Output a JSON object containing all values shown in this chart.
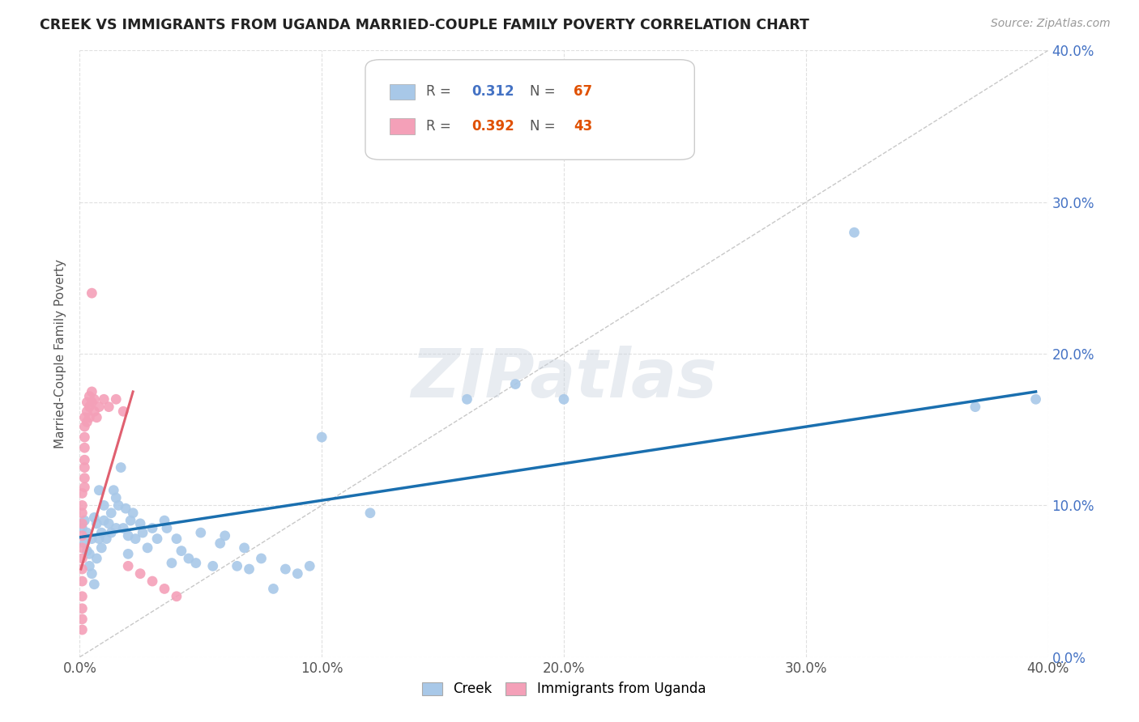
{
  "title": "CREEK VS IMMIGRANTS FROM UGANDA MARRIED-COUPLE FAMILY POVERTY CORRELATION CHART",
  "source": "Source: ZipAtlas.com",
  "ylabel": "Married-Couple Family Poverty",
  "xlim": [
    0.0,
    0.4
  ],
  "ylim": [
    0.0,
    0.4
  ],
  "xtick_vals": [
    0.0,
    0.1,
    0.2,
    0.3,
    0.4
  ],
  "xtick_labels": [
    "0.0%",
    "10.0%",
    "20.0%",
    "30.0%",
    "40.0%"
  ],
  "ytick_vals": [
    0.0,
    0.1,
    0.2,
    0.3,
    0.4
  ],
  "right_ytick_labels": [
    "0.0%",
    "10.0%",
    "20.0%",
    "30.0%",
    "40.0%"
  ],
  "creek_color": "#a8c8e8",
  "uganda_color": "#f4a0b8",
  "creek_line_color": "#1a6faf",
  "uganda_line_color": "#e06070",
  "diagonal_color": "#c8c8c8",
  "creek_R": "0.312",
  "creek_N": "67",
  "uganda_R": "0.392",
  "uganda_N": "43",
  "watermark": "ZIPatlas",
  "creek_points": [
    [
      0.001,
      0.085
    ],
    [
      0.002,
      0.09
    ],
    [
      0.002,
      0.075
    ],
    [
      0.003,
      0.082
    ],
    [
      0.003,
      0.07
    ],
    [
      0.004,
      0.068
    ],
    [
      0.004,
      0.06
    ],
    [
      0.005,
      0.078
    ],
    [
      0.005,
      0.055
    ],
    [
      0.006,
      0.048
    ],
    [
      0.006,
      0.092
    ],
    [
      0.007,
      0.065
    ],
    [
      0.007,
      0.088
    ],
    [
      0.008,
      0.078
    ],
    [
      0.008,
      0.11
    ],
    [
      0.009,
      0.082
    ],
    [
      0.009,
      0.072
    ],
    [
      0.01,
      0.09
    ],
    [
      0.01,
      0.1
    ],
    [
      0.011,
      0.078
    ],
    [
      0.012,
      0.088
    ],
    [
      0.013,
      0.082
    ],
    [
      0.013,
      0.095
    ],
    [
      0.014,
      0.11
    ],
    [
      0.015,
      0.105
    ],
    [
      0.015,
      0.085
    ],
    [
      0.016,
      0.1
    ],
    [
      0.017,
      0.125
    ],
    [
      0.018,
      0.085
    ],
    [
      0.019,
      0.098
    ],
    [
      0.02,
      0.08
    ],
    [
      0.02,
      0.068
    ],
    [
      0.021,
      0.09
    ],
    [
      0.022,
      0.095
    ],
    [
      0.023,
      0.078
    ],
    [
      0.025,
      0.088
    ],
    [
      0.026,
      0.082
    ],
    [
      0.028,
      0.072
    ],
    [
      0.03,
      0.085
    ],
    [
      0.032,
      0.078
    ],
    [
      0.035,
      0.09
    ],
    [
      0.036,
      0.085
    ],
    [
      0.038,
      0.062
    ],
    [
      0.04,
      0.078
    ],
    [
      0.042,
      0.07
    ],
    [
      0.045,
      0.065
    ],
    [
      0.048,
      0.062
    ],
    [
      0.05,
      0.082
    ],
    [
      0.055,
      0.06
    ],
    [
      0.058,
      0.075
    ],
    [
      0.06,
      0.08
    ],
    [
      0.065,
      0.06
    ],
    [
      0.068,
      0.072
    ],
    [
      0.07,
      0.058
    ],
    [
      0.075,
      0.065
    ],
    [
      0.08,
      0.045
    ],
    [
      0.085,
      0.058
    ],
    [
      0.09,
      0.055
    ],
    [
      0.095,
      0.06
    ],
    [
      0.1,
      0.145
    ],
    [
      0.12,
      0.095
    ],
    [
      0.16,
      0.17
    ],
    [
      0.18,
      0.18
    ],
    [
      0.2,
      0.17
    ],
    [
      0.32,
      0.28
    ],
    [
      0.37,
      0.165
    ],
    [
      0.395,
      0.17
    ]
  ],
  "uganda_points": [
    [
      0.001,
      0.018
    ],
    [
      0.001,
      0.025
    ],
    [
      0.001,
      0.032
    ],
    [
      0.001,
      0.04
    ],
    [
      0.001,
      0.05
    ],
    [
      0.001,
      0.058
    ],
    [
      0.001,
      0.065
    ],
    [
      0.001,
      0.072
    ],
    [
      0.001,
      0.08
    ],
    [
      0.001,
      0.088
    ],
    [
      0.001,
      0.095
    ],
    [
      0.001,
      0.1
    ],
    [
      0.001,
      0.108
    ],
    [
      0.002,
      0.112
    ],
    [
      0.002,
      0.118
    ],
    [
      0.002,
      0.125
    ],
    [
      0.002,
      0.13
    ],
    [
      0.002,
      0.138
    ],
    [
      0.002,
      0.145
    ],
    [
      0.002,
      0.152
    ],
    [
      0.002,
      0.158
    ],
    [
      0.003,
      0.162
    ],
    [
      0.003,
      0.168
    ],
    [
      0.003,
      0.155
    ],
    [
      0.004,
      0.165
    ],
    [
      0.004,
      0.158
    ],
    [
      0.004,
      0.172
    ],
    [
      0.005,
      0.168
    ],
    [
      0.005,
      0.175
    ],
    [
      0.006,
      0.162
    ],
    [
      0.006,
      0.17
    ],
    [
      0.007,
      0.158
    ],
    [
      0.008,
      0.165
    ],
    [
      0.01,
      0.17
    ],
    [
      0.012,
      0.165
    ],
    [
      0.015,
      0.17
    ],
    [
      0.018,
      0.162
    ],
    [
      0.02,
      0.06
    ],
    [
      0.025,
      0.055
    ],
    [
      0.03,
      0.05
    ],
    [
      0.035,
      0.045
    ],
    [
      0.04,
      0.04
    ],
    [
      0.005,
      0.24
    ]
  ],
  "creek_trend_x": [
    0.0,
    0.395
  ],
  "creek_trend_y": [
    0.079,
    0.175
  ],
  "uganda_trend_x": [
    0.0005,
    0.022
  ],
  "uganda_trend_y": [
    0.058,
    0.175
  ]
}
